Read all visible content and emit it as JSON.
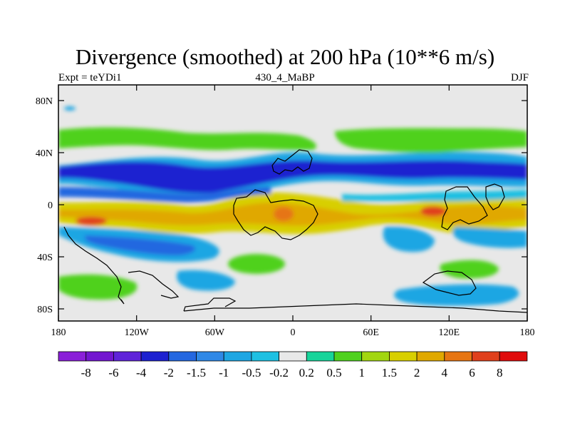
{
  "title": "Divergence (smoothed) at 200 hPa (10**6 m/s)",
  "subtitle_left": "Expt = teYDi1",
  "subtitle_center": "430_4_MaBP",
  "subtitle_right": "DJF",
  "lat_ticks": [
    "80N",
    "40N",
    "0",
    "40S",
    "80S"
  ],
  "lon_ticks": [
    "180",
    "120W",
    "60W",
    "0",
    "60E",
    "120E",
    "180"
  ],
  "colorbar": {
    "colors": [
      "#8a1fd8",
      "#7316d0",
      "#5f23d9",
      "#1d21d0",
      "#2467e0",
      "#2f88e6",
      "#1ea6e3",
      "#1ec0e2",
      "#e8e8e8",
      "#18d49a",
      "#4fd11f",
      "#a2d610",
      "#d8cf00",
      "#e0a800",
      "#e67512",
      "#e0401c",
      "#e00b0b"
    ],
    "labels": [
      "-8",
      "-6",
      "-4",
      "-2",
      "-1.5",
      "-1",
      "-0.5",
      "-0.2",
      "0.2",
      "0.5",
      "1",
      "1.5",
      "2",
      "4",
      "6",
      "8"
    ]
  },
  "colors": {
    "background": "#e8e8e8",
    "coastline": "#000000"
  }
}
